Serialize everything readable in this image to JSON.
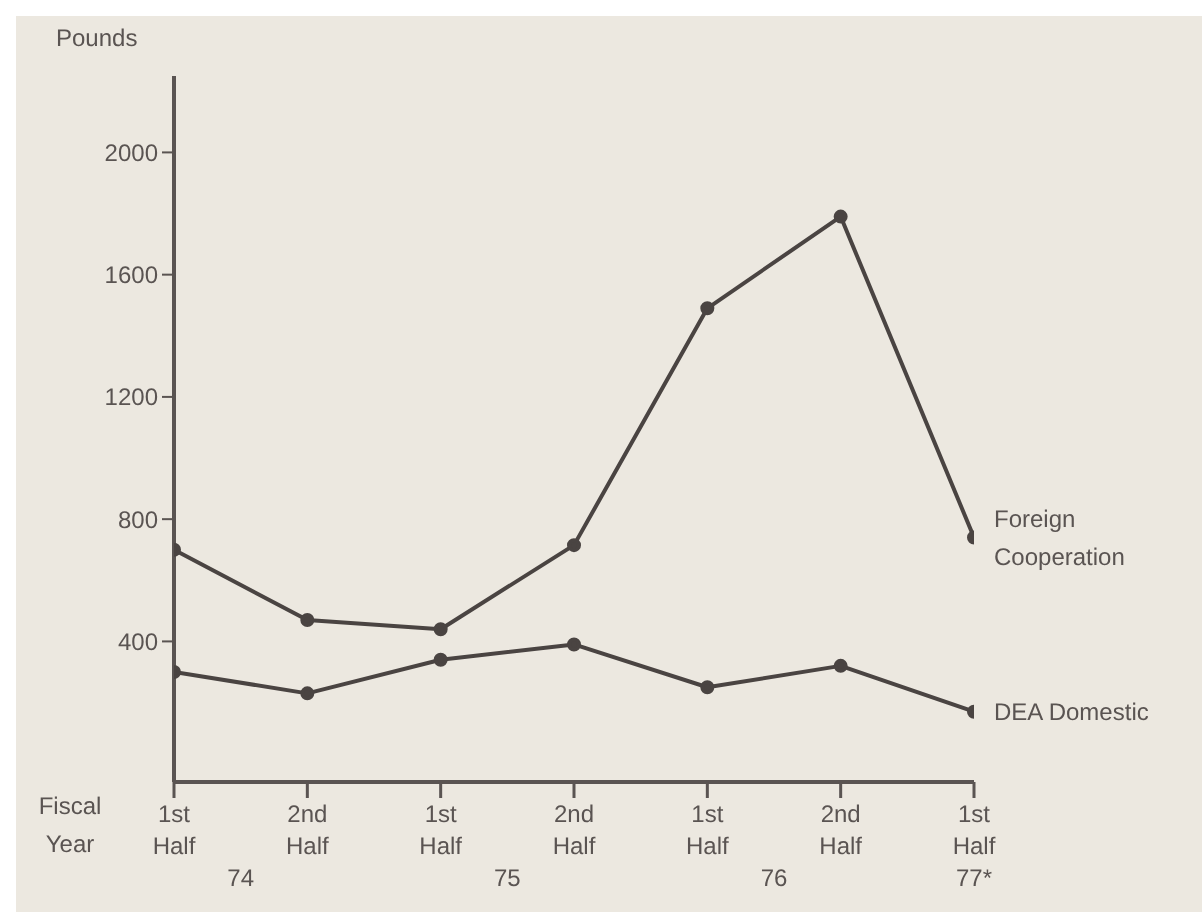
{
  "chart_data": {
    "type": "line",
    "ylabel": "Pounds",
    "xlabel": "Fiscal Year",
    "categories": [
      "1st Half",
      "2nd Half",
      "1st Half",
      "2nd Half",
      "1st Half",
      "2nd Half",
      "1st Half"
    ],
    "series": [
      {
        "name": "Foreign Cooperation",
        "color": "#4a4442",
        "values": [
          700,
          470,
          440,
          715,
          1490,
          1790,
          740
        ]
      },
      {
        "name": "DEA Domestic",
        "color": "#4a4442",
        "values": [
          300,
          230,
          340,
          390,
          250,
          320,
          170
        ]
      }
    ],
    "annotations": [
      "74",
      "75",
      "76",
      "77*"
    ],
    "ylim": [
      -60,
      2250
    ],
    "yticks": [
      400,
      800,
      1200,
      1600,
      2000
    ],
    "marker": "circle",
    "line_style": "solid"
  }
}
